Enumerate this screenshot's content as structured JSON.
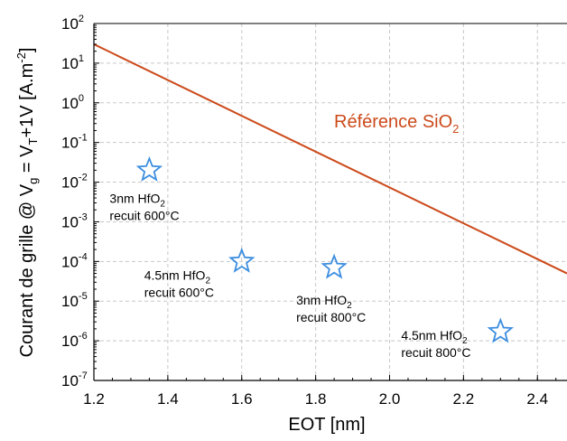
{
  "chart_data": {
    "type": "scatter",
    "xlabel": "EOT  [nm]",
    "ylabel": {
      "prefix": "Courant de grille @ V",
      "sub1": "g",
      "mid": " = V",
      "sub2": "T",
      "suffix": "+1V   [A.m",
      "sup": "-2",
      "close": "]"
    },
    "xlim": [
      1.2,
      2.48
    ],
    "ylim_log10": [
      -7,
      2
    ],
    "y_scale": "log",
    "grid": true,
    "x_ticks": [
      "1.2",
      "1.4",
      "1.6",
      "1.8",
      "2.0",
      "2.2",
      "2.4"
    ],
    "y_ticks": [
      {
        "base": "10",
        "exp": "2"
      },
      {
        "base": "10",
        "exp": "1"
      },
      {
        "base": "10",
        "exp": "0"
      },
      {
        "base": "10",
        "exp": "-1"
      },
      {
        "base": "10",
        "exp": "-2"
      },
      {
        "base": "10",
        "exp": "-3"
      },
      {
        "base": "10",
        "exp": "-4"
      },
      {
        "base": "10",
        "exp": "-5"
      },
      {
        "base": "10",
        "exp": "-6"
      },
      {
        "base": "10",
        "exp": "-7"
      }
    ],
    "reference_line": {
      "label": "Référence SiO",
      "label_sub": "2",
      "color": "#cc4a1a",
      "points": [
        {
          "x": 1.2,
          "y": 30
        },
        {
          "x": 2.48,
          "y": 5e-05
        }
      ]
    },
    "points": [
      {
        "x": 1.35,
        "y": 0.02,
        "label_line1": "3nm HfO",
        "label_sub": "2",
        "label_line2": "recuit 600°C"
      },
      {
        "x": 1.6,
        "y": 0.0001,
        "label_line1": "4.5nm HfO",
        "label_sub": "2",
        "label_line2": "recuit 600°C"
      },
      {
        "x": 1.85,
        "y": 7e-05,
        "label_line1": "3nm HfO",
        "label_sub": "2",
        "label_line2": "recuit 800°C"
      },
      {
        "x": 2.3,
        "y": 1.7e-06,
        "label_line1": "4.5nm HfO",
        "label_sub": "2",
        "label_line2": "recuit 800°C"
      }
    ],
    "marker": "star-icon",
    "marker_color": "#3c8ee0"
  }
}
